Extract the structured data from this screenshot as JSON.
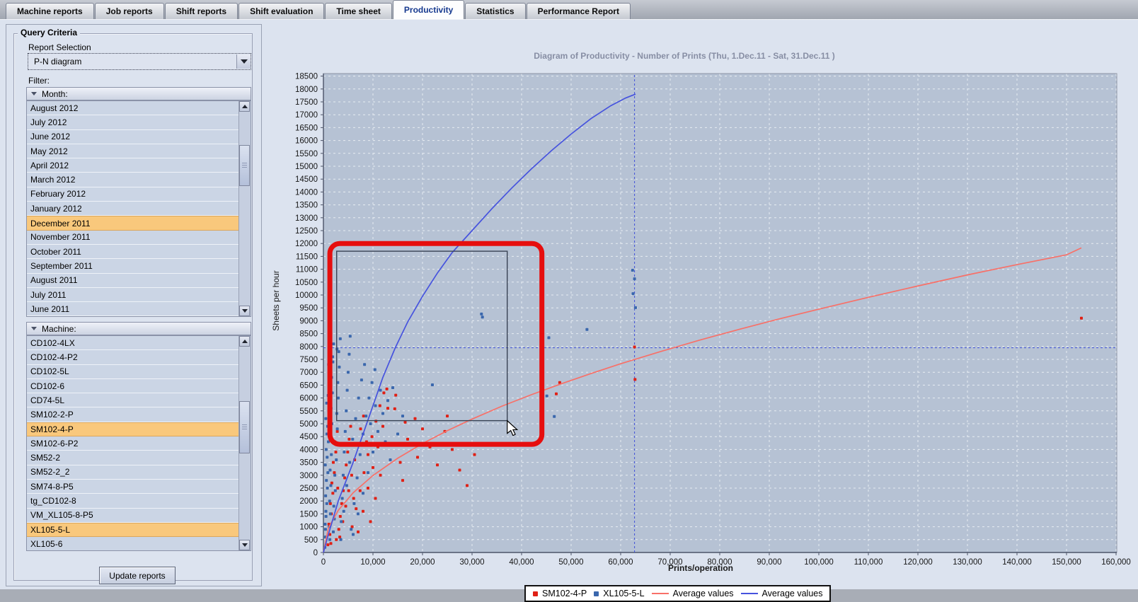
{
  "tabs": {
    "items": [
      {
        "label": "Machine reports",
        "active": false
      },
      {
        "label": "Job reports",
        "active": false
      },
      {
        "label": "Shift reports",
        "active": false
      },
      {
        "label": "Shift evaluation",
        "active": false
      },
      {
        "label": "Time sheet",
        "active": false
      },
      {
        "label": "Productivity",
        "active": true
      },
      {
        "label": "Statistics",
        "active": false
      },
      {
        "label": "Performance Report",
        "active": false
      }
    ]
  },
  "sidebar": {
    "group_title": "Query Criteria",
    "report_selection_label": "Report Selection",
    "report_selection_value": "P-N diagram",
    "filter_label": "Filter:",
    "month_header": "Month:",
    "months": [
      {
        "label": "August 2012",
        "selected": false
      },
      {
        "label": "July 2012",
        "selected": false
      },
      {
        "label": "June 2012",
        "selected": false
      },
      {
        "label": "May 2012",
        "selected": false
      },
      {
        "label": "April 2012",
        "selected": false
      },
      {
        "label": "March 2012",
        "selected": false
      },
      {
        "label": "February 2012",
        "selected": false
      },
      {
        "label": "January 2012",
        "selected": false
      },
      {
        "label": "December 2011",
        "selected": true
      },
      {
        "label": "November 2011",
        "selected": false
      },
      {
        "label": "October 2011",
        "selected": false
      },
      {
        "label": "September 2011",
        "selected": false
      },
      {
        "label": "August 2011",
        "selected": false
      },
      {
        "label": "July 2011",
        "selected": false
      },
      {
        "label": "June 2011",
        "selected": false
      }
    ],
    "machine_header": "Machine:",
    "machines": [
      {
        "label": "CD102-4LX",
        "selected": false
      },
      {
        "label": "CD102-4-P2",
        "selected": false
      },
      {
        "label": "CD102-5L",
        "selected": false
      },
      {
        "label": "CD102-6",
        "selected": false
      },
      {
        "label": "CD74-5L",
        "selected": false
      },
      {
        "label": "SM102-2-P",
        "selected": false
      },
      {
        "label": "SM102-4-P",
        "selected": true
      },
      {
        "label": "SM102-6-P2",
        "selected": false
      },
      {
        "label": "SM52-2",
        "selected": false
      },
      {
        "label": "SM52-2_2",
        "selected": false
      },
      {
        "label": "SM74-8-P5",
        "selected": false
      },
      {
        "label": "tg_CD102-8",
        "selected": false
      },
      {
        "label": "VM_XL105-8-P5",
        "selected": false
      },
      {
        "label": "XL105-5-L",
        "selected": true
      },
      {
        "label": "XL105-6",
        "selected": false
      }
    ],
    "update_button": "Update reports"
  },
  "chart_data": {
    "type": "scatter",
    "title": "Diagram of Productivity - Number of Prints   (Thu, 1.Dec.11  - Sat, 31.Dec.11 )",
    "xlabel": "Prints/operation",
    "ylabel": "Sheets per hour",
    "xlim": [
      0,
      160000
    ],
    "ylim": [
      0,
      18500
    ],
    "x_tick_step": 10000,
    "y_tick_step": 500,
    "grid": true,
    "plot_bg": "#b6c2d4",
    "grid_color": "#edf1f6",
    "series": [
      {
        "name": "SM102-4-P",
        "kind": "points",
        "color": "#e02015",
        "points": [
          [
            900,
            300
          ],
          [
            1300,
            700
          ],
          [
            1100,
            1100
          ],
          [
            1600,
            1500
          ],
          [
            1400,
            1900
          ],
          [
            1900,
            2300
          ],
          [
            1700,
            2700
          ],
          [
            2200,
            3100
          ],
          [
            2000,
            3500
          ],
          [
            2500,
            3900
          ],
          [
            2300,
            4300
          ],
          [
            2800,
            4700
          ],
          [
            3100,
            900
          ],
          [
            3400,
            1400
          ],
          [
            3700,
            1900
          ],
          [
            4000,
            2400
          ],
          [
            4300,
            2900
          ],
          [
            4600,
            3400
          ],
          [
            4900,
            3900
          ],
          [
            5200,
            4400
          ],
          [
            5500,
            4900
          ],
          [
            3300,
            600
          ],
          [
            3900,
            1200
          ],
          [
            4500,
            1800
          ],
          [
            5100,
            2400
          ],
          [
            5700,
            3000
          ],
          [
            6300,
            3600
          ],
          [
            6900,
            4200
          ],
          [
            7500,
            4800
          ],
          [
            8100,
            5300
          ],
          [
            5800,
            1000
          ],
          [
            6600,
            1700
          ],
          [
            7400,
            2400
          ],
          [
            8200,
            3100
          ],
          [
            9000,
            3800
          ],
          [
            9800,
            4500
          ],
          [
            10600,
            5100
          ],
          [
            11400,
            5700
          ],
          [
            12200,
            6200
          ],
          [
            7000,
            800
          ],
          [
            8000,
            1600
          ],
          [
            9000,
            2500
          ],
          [
            10000,
            3300
          ],
          [
            11000,
            4100
          ],
          [
            12000,
            4900
          ],
          [
            13000,
            5600
          ],
          [
            14600,
            6110
          ],
          [
            14400,
            5580
          ],
          [
            16500,
            5060
          ],
          [
            12800,
            6350
          ],
          [
            9500,
            1200
          ],
          [
            10500,
            2100
          ],
          [
            11500,
            3000
          ],
          [
            13500,
            4200
          ],
          [
            15500,
            3500
          ],
          [
            17000,
            4400
          ],
          [
            18500,
            5200
          ],
          [
            20000,
            4800
          ],
          [
            21500,
            4100
          ],
          [
            23000,
            3400
          ],
          [
            24500,
            4700
          ],
          [
            26000,
            4000
          ],
          [
            27500,
            3200
          ],
          [
            29000,
            2600
          ],
          [
            30500,
            3800
          ],
          [
            2600,
            500
          ],
          [
            1500,
            350
          ],
          [
            2900,
            2500
          ],
          [
            6100,
            2100
          ],
          [
            8700,
            4300
          ],
          [
            16000,
            2800
          ],
          [
            19000,
            3700
          ],
          [
            25000,
            5300
          ],
          [
            43900,
            5490
          ],
          [
            47700,
            6600
          ],
          [
            47000,
            6160
          ],
          [
            62800,
            7980
          ],
          [
            62900,
            6720
          ],
          [
            153000,
            9100
          ]
        ]
      },
      {
        "name": "XL105-5-L",
        "kind": "points",
        "color": "#3a67ad",
        "points": [
          [
            300,
            200
          ],
          [
            400,
            600
          ],
          [
            350,
            1100
          ],
          [
            500,
            1600
          ],
          [
            450,
            2200
          ],
          [
            600,
            2800
          ],
          [
            380,
            3400
          ],
          [
            550,
            4000
          ],
          [
            700,
            4600
          ],
          [
            480,
            5200
          ],
          [
            650,
            5800
          ],
          [
            420,
            900
          ],
          [
            520,
            1400
          ],
          [
            680,
            1900
          ],
          [
            800,
            2500
          ],
          [
            900,
            3100
          ],
          [
            750,
            3700
          ],
          [
            1000,
            4300
          ],
          [
            850,
            4900
          ],
          [
            1100,
            5500
          ],
          [
            950,
            6100
          ],
          [
            1200,
            6700
          ],
          [
            1050,
            7300
          ],
          [
            1300,
            500
          ],
          [
            1150,
            1000
          ],
          [
            1400,
            1500
          ],
          [
            1250,
            2000
          ],
          [
            1500,
            2600
          ],
          [
            1350,
            3200
          ],
          [
            1600,
            3800
          ],
          [
            1450,
            4400
          ],
          [
            1700,
            5000
          ],
          [
            1550,
            5600
          ],
          [
            1800,
            6200
          ],
          [
            1650,
            6800
          ],
          [
            1900,
            7400
          ],
          [
            2000,
            800
          ],
          [
            2200,
            1300
          ],
          [
            2100,
            1800
          ],
          [
            2400,
            2400
          ],
          [
            2300,
            3000
          ],
          [
            2600,
            3600
          ],
          [
            2500,
            4200
          ],
          [
            2800,
            4800
          ],
          [
            2700,
            5400
          ],
          [
            3000,
            6000
          ],
          [
            2900,
            6600
          ],
          [
            3200,
            7200
          ],
          [
            3100,
            7800
          ],
          [
            3400,
            8300
          ],
          [
            3600,
            1200
          ],
          [
            3800,
            2100
          ],
          [
            4000,
            3000
          ],
          [
            4200,
            3900
          ],
          [
            4400,
            4700
          ],
          [
            4600,
            5500
          ],
          [
            4800,
            6300
          ],
          [
            5000,
            7000
          ],
          [
            5200,
            7700
          ],
          [
            5400,
            8400
          ],
          [
            3500,
            500
          ],
          [
            4100,
            1600
          ],
          [
            4700,
            2600
          ],
          [
            5300,
            3500
          ],
          [
            5900,
            4400
          ],
          [
            6500,
            5200
          ],
          [
            7100,
            6000
          ],
          [
            7700,
            6700
          ],
          [
            8300,
            7300
          ],
          [
            5600,
            900
          ],
          [
            6200,
            1900
          ],
          [
            6800,
            2900
          ],
          [
            7400,
            3800
          ],
          [
            8000,
            4600
          ],
          [
            8600,
            5300
          ],
          [
            9200,
            6000
          ],
          [
            9800,
            6600
          ],
          [
            10400,
            7100
          ],
          [
            6000,
            700
          ],
          [
            7000,
            1500
          ],
          [
            8000,
            2300
          ],
          [
            9000,
            3100
          ],
          [
            10000,
            3900
          ],
          [
            11000,
            4700
          ],
          [
            12000,
            5400
          ],
          [
            9500,
            5000
          ],
          [
            10500,
            5700
          ],
          [
            11500,
            6300
          ],
          [
            13000,
            5900
          ],
          [
            14000,
            6400
          ],
          [
            12500,
            4300
          ],
          [
            13500,
            3600
          ],
          [
            2050,
            8100
          ],
          [
            2750,
            7900
          ],
          [
            1850,
            7600
          ],
          [
            16000,
            5300
          ],
          [
            15000,
            4600
          ],
          [
            22000,
            6510
          ],
          [
            31900,
            9260
          ],
          [
            32100,
            9140
          ],
          [
            45500,
            8340
          ],
          [
            53200,
            8660
          ],
          [
            62400,
            10960
          ],
          [
            62800,
            10630
          ],
          [
            62500,
            10050
          ],
          [
            63000,
            9510
          ],
          [
            45100,
            6080
          ],
          [
            46600,
            5280
          ]
        ]
      },
      {
        "name": "Average values",
        "kind": "line",
        "color": "#f87068",
        "points": [
          [
            0,
            0
          ],
          [
            1000,
            950
          ],
          [
            3000,
            1640
          ],
          [
            6000,
            2320
          ],
          [
            10000,
            2990
          ],
          [
            15000,
            3660
          ],
          [
            20000,
            4230
          ],
          [
            25000,
            4730
          ],
          [
            30000,
            5180
          ],
          [
            36000,
            5680
          ],
          [
            42000,
            6130
          ],
          [
            48000,
            6550
          ],
          [
            54000,
            6950
          ],
          [
            60000,
            7330
          ],
          [
            68000,
            7800
          ],
          [
            76000,
            8250
          ],
          [
            84000,
            8670
          ],
          [
            92000,
            9070
          ],
          [
            100000,
            9450
          ],
          [
            110000,
            9910
          ],
          [
            120000,
            10350
          ],
          [
            130000,
            10780
          ],
          [
            140000,
            11180
          ],
          [
            150000,
            11560
          ],
          [
            153000,
            11830
          ]
        ]
      },
      {
        "name": "Average values",
        "kind": "line",
        "color": "#4653de",
        "points": [
          [
            0,
            0
          ],
          [
            1000,
            700
          ],
          [
            2000,
            1350
          ],
          [
            3000,
            2000
          ],
          [
            4500,
            2750
          ],
          [
            6000,
            3500
          ],
          [
            8000,
            4600
          ],
          [
            10000,
            5700
          ],
          [
            12000,
            6800
          ],
          [
            14500,
            7950
          ],
          [
            17000,
            8950
          ],
          [
            20000,
            9950
          ],
          [
            23000,
            10850
          ],
          [
            26000,
            11650
          ],
          [
            30000,
            12500
          ],
          [
            34000,
            13350
          ],
          [
            38000,
            14150
          ],
          [
            42000,
            14900
          ],
          [
            46000,
            15600
          ],
          [
            50000,
            16250
          ],
          [
            54000,
            16850
          ],
          [
            58000,
            17350
          ],
          [
            61000,
            17650
          ],
          [
            63000,
            17800
          ]
        ]
      }
    ],
    "crosshair": {
      "x": 62800,
      "y": 7950,
      "color": "#4050d8"
    },
    "selection_rect": {
      "x1": 2670,
      "y1": 5120,
      "x2": 37100,
      "y2": 11700,
      "color": "#3a4354"
    },
    "annotation_rect": {
      "x1": 1300,
      "y1": 4200,
      "x2": 44100,
      "y2": 12000,
      "color": "#e60e0e"
    },
    "legend": [
      {
        "label": "SM102-4-P",
        "marker": "point",
        "color": "#e02015"
      },
      {
        "label": "XL105-5-L",
        "marker": "point",
        "color": "#3a67ad"
      },
      {
        "label": "Average values",
        "marker": "line",
        "color": "#f87068"
      },
      {
        "label": "Average values",
        "marker": "line",
        "color": "#4653de"
      }
    ]
  }
}
